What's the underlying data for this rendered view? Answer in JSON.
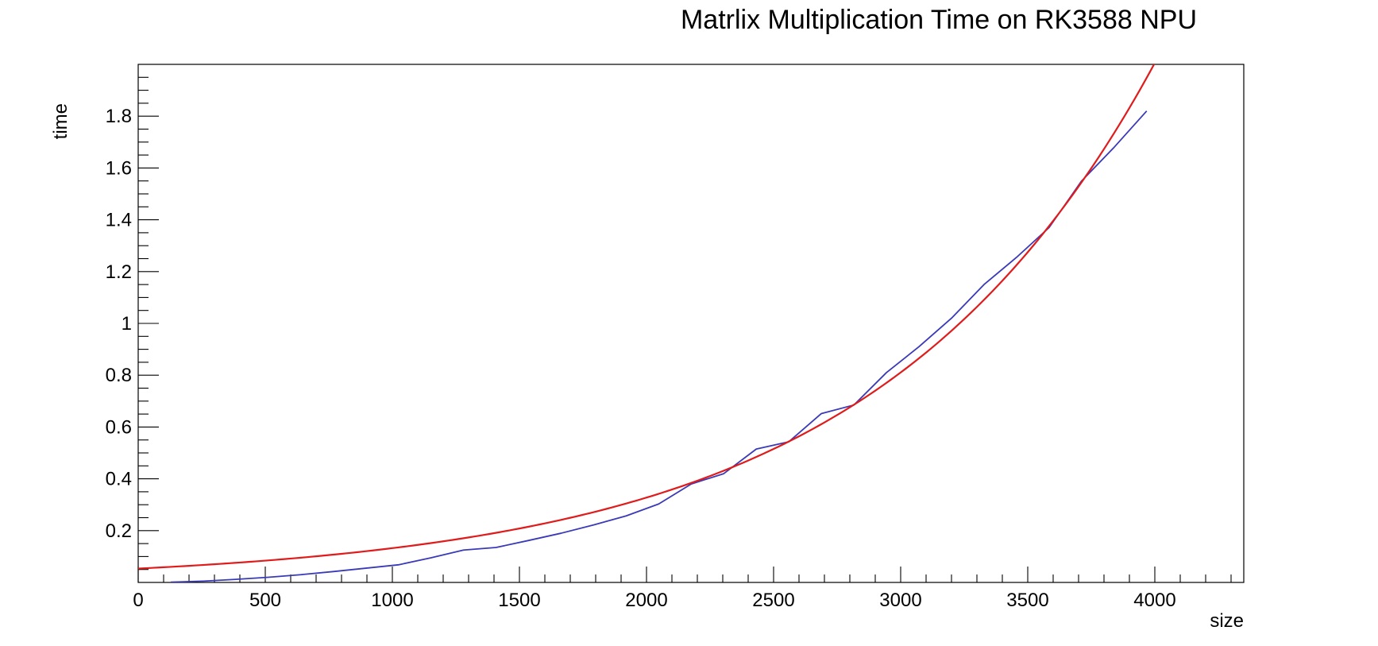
{
  "chart_data": {
    "type": "line",
    "title": "Matrlix Multiplication Time on RK3588 NPU",
    "xlabel": "size",
    "ylabel": "time",
    "xlim": [
      0,
      4350
    ],
    "ylim": [
      0,
      2.0
    ],
    "grid": false,
    "x_ticks": [
      "0",
      "500",
      "1000",
      "1500",
      "2000",
      "2500",
      "3000",
      "3500",
      "4000"
    ],
    "y_ticks": [
      "0.2",
      "0.4",
      "0.6",
      "0.8",
      "1",
      "1.2",
      "1.4",
      "1.6",
      "1.8"
    ],
    "series": [
      {
        "color": "#3a3ab8",
        "x": [
          128,
          256,
          384,
          512,
          640,
          768,
          896,
          1024,
          1152,
          1280,
          1408,
          1536,
          1664,
          1792,
          1920,
          2048,
          2176,
          2304,
          2432,
          2560,
          2688,
          2816,
          2944,
          3072,
          3200,
          3328,
          3456,
          3584,
          3712,
          3840,
          3968
        ],
        "values": [
          0.001,
          0.005,
          0.012,
          0.02,
          0.03,
          0.042,
          0.055,
          0.068,
          0.095,
          0.125,
          0.135,
          0.162,
          0.19,
          0.222,
          0.257,
          0.303,
          0.38,
          0.42,
          0.515,
          0.543,
          0.652,
          0.685,
          0.81,
          0.91,
          1.02,
          1.15,
          1.255,
          1.37,
          1.55,
          1.68,
          1.82
        ]
      },
      {
        "color": "#e01b1b",
        "fit": "exponential",
        "a": 0.0535,
        "b": 0.000906
      }
    ]
  }
}
